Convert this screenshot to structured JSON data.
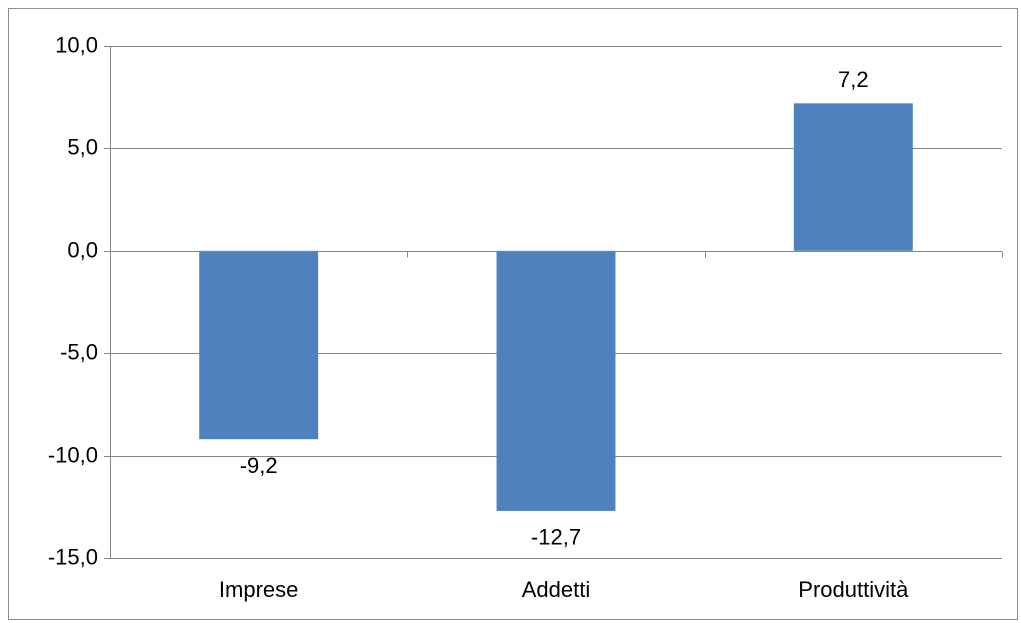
{
  "chart_data": {
    "type": "bar",
    "title": "",
    "xlabel": "",
    "ylabel": "",
    "categories": [
      "Imprese",
      "Addetti",
      "Produttività"
    ],
    "values": [
      -9.2,
      -12.7,
      7.2
    ],
    "data_labels": [
      "-9,2",
      "-12,7",
      "7,2"
    ],
    "ylim": [
      -15,
      10
    ],
    "yticks": [
      10,
      5,
      0,
      -5,
      -10,
      -15
    ],
    "ytick_labels": [
      "10,0",
      "5,0",
      "0,0",
      "-5,0",
      "-10,0",
      "-15,0"
    ],
    "grid": true,
    "legend": "none",
    "bar_color": "#4f81bd"
  }
}
